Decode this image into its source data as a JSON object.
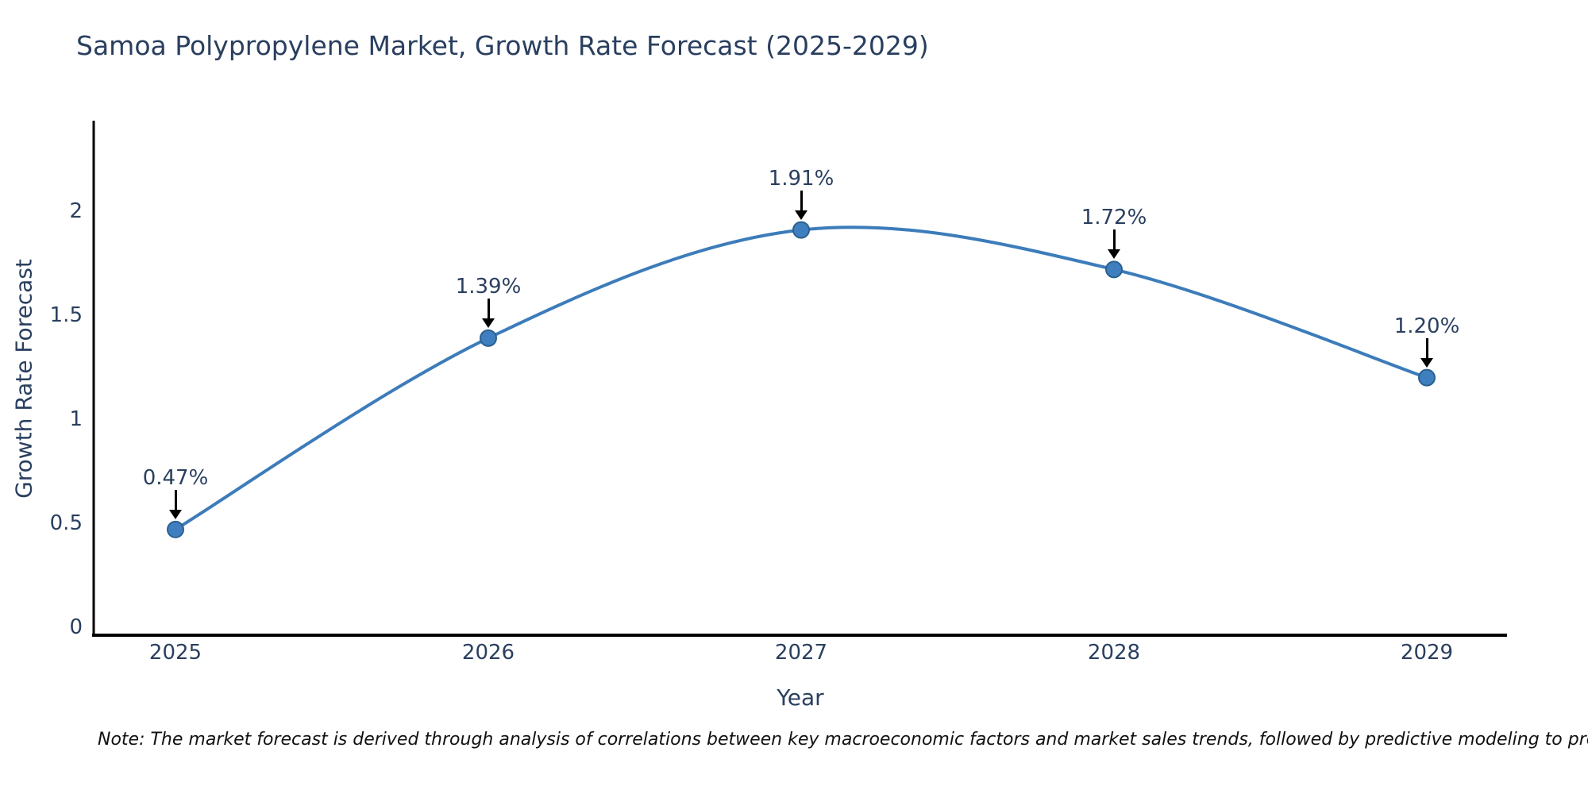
{
  "chart_data": {
    "type": "line",
    "title": "Samoa Polypropylene Market, Growth Rate Forecast (2025-2029)",
    "xlabel": "Year",
    "ylabel": "Growth Rate Forecast",
    "categories": [
      "2025",
      "2026",
      "2027",
      "2028",
      "2029"
    ],
    "values": [
      0.47,
      1.39,
      1.91,
      1.72,
      1.2
    ],
    "annotations": [
      "0.47%",
      "1.39%",
      "1.91%",
      "1.72%",
      "1.20%"
    ],
    "y_ticks": [
      0,
      0.5,
      1,
      1.5,
      2
    ],
    "y_tick_labels": [
      "0",
      "0.5",
      "1",
      "1.5",
      "2"
    ],
    "ylim": [
      0,
      2.4
    ],
    "grid": false,
    "legend_position": "none",
    "line_shape": "spline",
    "line_color": "#3d7cba",
    "marker_fill": "#3f7fbf",
    "marker_stroke": "#2b618f",
    "arrow_color": "#000000",
    "text_color": "#2a3f5f",
    "note": "Note: The market forecast is derived through analysis of correlations between key macroeconomic factors and market sales trends, followed by predictive modeling to project future sales"
  }
}
